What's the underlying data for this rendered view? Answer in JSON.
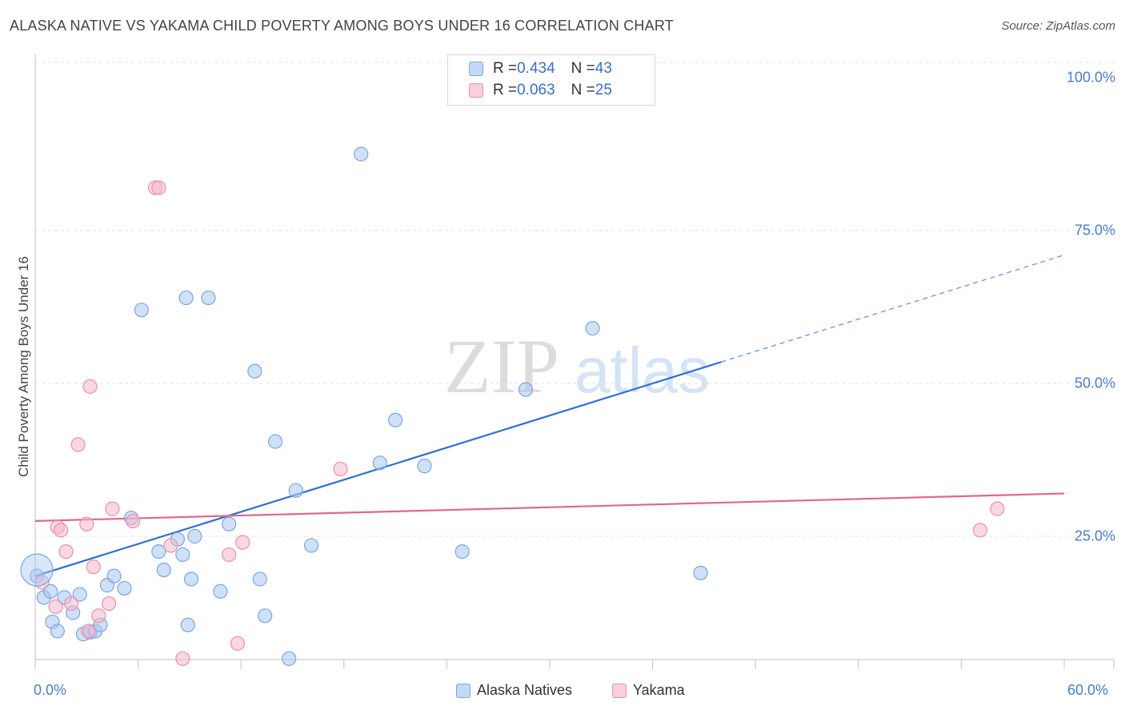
{
  "title": "ALASKA NATIVE VS YAKAMA CHILD POVERTY AMONG BOYS UNDER 16 CORRELATION CHART",
  "source": "Source: ZipAtlas.com",
  "watermark": {
    "zip": "ZIP",
    "atlas": "atlas"
  },
  "legend": {
    "rows": [
      {
        "r_label": "R = ",
        "r_value": "0.434",
        "n_label": "N = ",
        "n_value": "43",
        "color": "#a8c8f0"
      },
      {
        "r_label": "R = ",
        "r_value": "0.063",
        "n_label": "N = ",
        "n_value": "25",
        "color": "#f5b8cc"
      }
    ]
  },
  "chart_data": {
    "type": "scatter",
    "title": "ALASKA NATIVE VS YAKAMA CHILD POVERTY AMONG BOYS UNDER 16 CORRELATION CHART",
    "xlabel": "",
    "ylabel": "Child Poverty Among Boys Under 16",
    "xlim": [
      0,
      60
    ],
    "ylim": [
      0,
      100
    ],
    "x_tick_labels": [
      "0.0%",
      "60.0%"
    ],
    "y_tick_labels": [
      "100.0%",
      "75.0%",
      "50.0%",
      "25.0%"
    ],
    "y_ticks": [
      100,
      75,
      50,
      25
    ],
    "grid": true,
    "legend_position": "top-center",
    "series": [
      {
        "name": "Alaska Natives",
        "color": "#a8c8f0",
        "stroke": "#7aa6e0",
        "line_color": "#2f6fd0",
        "points": [
          [
            0.1,
            18.5
          ],
          [
            0.5,
            15
          ],
          [
            0.9,
            16
          ],
          [
            1.0,
            11
          ],
          [
            1.3,
            9.5
          ],
          [
            1.7,
            15
          ],
          [
            2.2,
            12.5
          ],
          [
            2.6,
            15.5
          ],
          [
            2.8,
            9
          ],
          [
            3.2,
            9.3
          ],
          [
            3.5,
            9.5
          ],
          [
            3.8,
            10.5
          ],
          [
            4.2,
            17
          ],
          [
            4.6,
            18.5
          ],
          [
            5.2,
            16.5
          ],
          [
            5.6,
            28
          ],
          [
            6.2,
            62
          ],
          [
            7.2,
            22.5
          ],
          [
            7.5,
            19.5
          ],
          [
            8.3,
            24.5
          ],
          [
            8.6,
            22
          ],
          [
            8.8,
            64
          ],
          [
            8.9,
            10.5
          ],
          [
            9.1,
            18
          ],
          [
            9.3,
            25
          ],
          [
            10.1,
            64
          ],
          [
            10.8,
            16
          ],
          [
            11.3,
            27
          ],
          [
            12.8,
            52
          ],
          [
            13.1,
            18
          ],
          [
            13.4,
            12
          ],
          [
            14.0,
            40.5
          ],
          [
            14.8,
            5
          ],
          [
            15.2,
            32.5
          ],
          [
            16.1,
            23.5
          ],
          [
            19.0,
            87.5
          ],
          [
            20.1,
            37
          ],
          [
            21.0,
            44
          ],
          [
            22.7,
            36.5
          ],
          [
            24.9,
            22.5
          ],
          [
            28.6,
            49
          ],
          [
            32.5,
            59
          ],
          [
            38.8,
            19
          ]
        ],
        "trend": {
          "x0": 0,
          "y0": 18.5,
          "x1": 40,
          "y1": 53.5,
          "dash_x1": 60,
          "dash_y1": 71
        }
      },
      {
        "name": "Yakama",
        "color": "#f5b8cc",
        "stroke": "#e890ad",
        "line_color": "#e06890",
        "points": [
          [
            0.4,
            17.5
          ],
          [
            1.2,
            13.5
          ],
          [
            1.3,
            26.5
          ],
          [
            1.5,
            26
          ],
          [
            1.8,
            22.5
          ],
          [
            2.1,
            14
          ],
          [
            2.5,
            40
          ],
          [
            3.0,
            27
          ],
          [
            3.1,
            9.5
          ],
          [
            3.2,
            49.5
          ],
          [
            3.4,
            20
          ],
          [
            3.7,
            12
          ],
          [
            4.3,
            14
          ],
          [
            4.5,
            29.5
          ],
          [
            5.7,
            27.5
          ],
          [
            7.0,
            82
          ],
          [
            7.2,
            82
          ],
          [
            7.9,
            23.5
          ],
          [
            8.6,
            5
          ],
          [
            11.3,
            22
          ],
          [
            11.8,
            7.5
          ],
          [
            12.1,
            24
          ],
          [
            17.8,
            36
          ],
          [
            55.1,
            26
          ],
          [
            56.1,
            29.5
          ]
        ],
        "trend": {
          "x0": 0,
          "y0": 27.5,
          "x1": 60,
          "y1": 32
        }
      }
    ]
  }
}
